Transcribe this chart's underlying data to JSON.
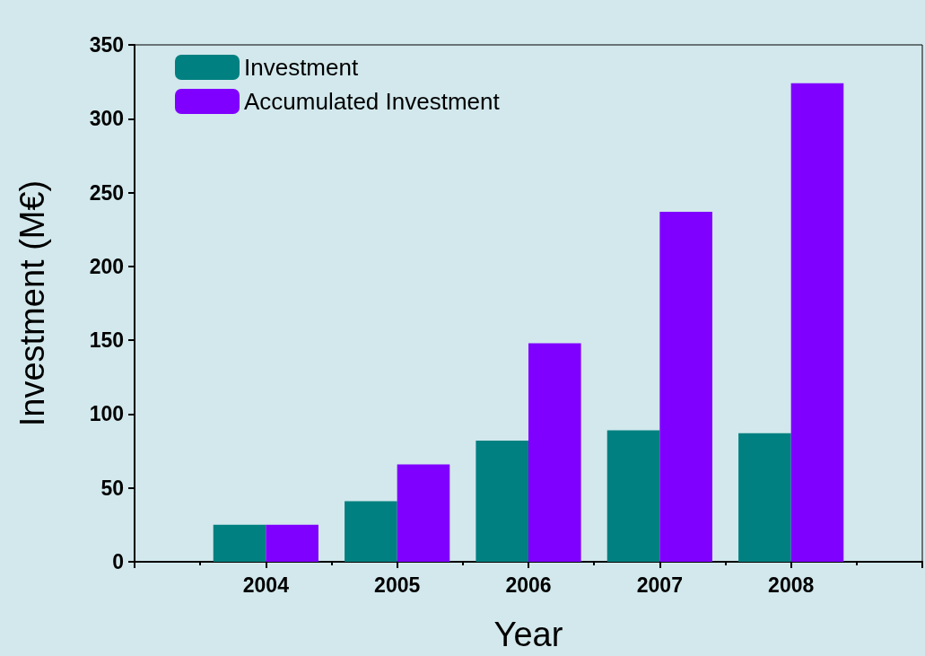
{
  "chart_data": {
    "type": "bar",
    "xlabel": "Year",
    "ylabel": "Investment (M€)",
    "x": [
      2004,
      2005,
      2006,
      2007,
      2008
    ],
    "series": [
      {
        "name": "Investment",
        "color": "#008080",
        "values": [
          25,
          41,
          82,
          89,
          87
        ]
      },
      {
        "name": "Accumulated Investment",
        "color": "#8000ff",
        "values": [
          25,
          66,
          148,
          237,
          324
        ]
      }
    ],
    "xlim": [
      2003,
      2009
    ],
    "xticks": [
      {
        "value": 2003,
        "label": null
      },
      2004,
      2005,
      2006,
      2007,
      2008,
      {
        "value": 2009,
        "label": null
      }
    ],
    "ylim": [
      0,
      350
    ],
    "yticks": [
      0,
      50,
      100,
      150,
      200,
      250,
      300,
      350
    ],
    "grid": false,
    "legend": "top left"
  }
}
